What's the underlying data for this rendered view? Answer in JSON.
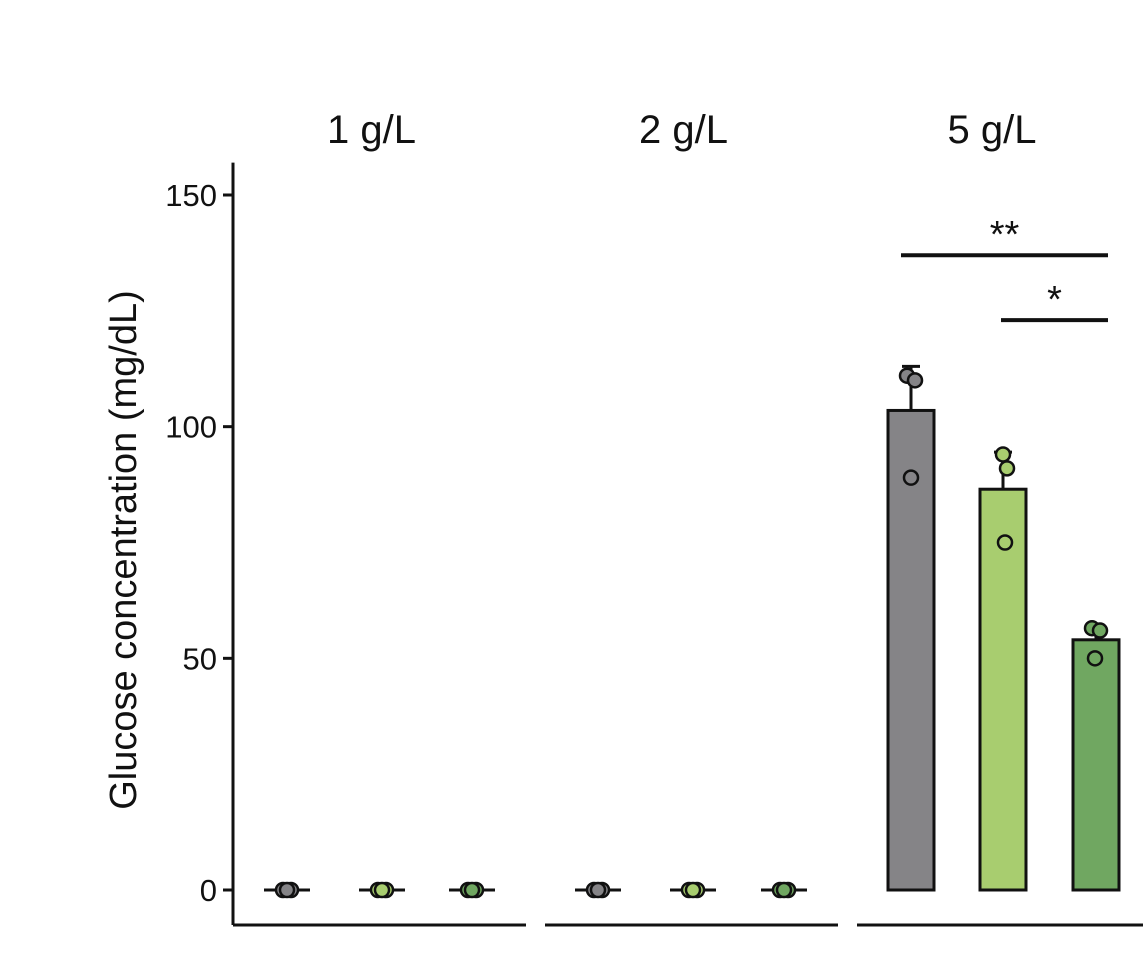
{
  "chart_data": {
    "type": "bar",
    "ylabel": "Glucose concentration (mg/dL)",
    "ylim": [
      0,
      157
    ],
    "yticks": [
      0,
      50,
      100,
      150
    ],
    "grid": false,
    "legend": "none",
    "colors": [
      "#858487",
      "#a8cd6f",
      "#70a761"
    ],
    "facets": [
      {
        "title": "1 g/L",
        "values": [
          0,
          0,
          0
        ],
        "errors": [
          0,
          0,
          0
        ],
        "points": [
          [
            0,
            0,
            0
          ],
          [
            0,
            0,
            0
          ],
          [
            0,
            0,
            0
          ]
        ],
        "significance": []
      },
      {
        "title": "2 g/L",
        "values": [
          0,
          0,
          0
        ],
        "errors": [
          0,
          0,
          0
        ],
        "points": [
          [
            0,
            0,
            0
          ],
          [
            0,
            0,
            0
          ],
          [
            0,
            0,
            0
          ]
        ],
        "significance": []
      },
      {
        "title": "5 g/L",
        "values": [
          103.5,
          86.5,
          54
        ],
        "errors": [
          9.5,
          8,
          2
        ],
        "points": [
          [
            111,
            110,
            89
          ],
          [
            94,
            91,
            75
          ],
          [
            56.5,
            56,
            50
          ]
        ],
        "significance": [
          {
            "from": 0,
            "to": 2,
            "y": 137,
            "label": "**"
          },
          {
            "from": 1,
            "to": 2,
            "y": 123,
            "label": "*"
          }
        ]
      }
    ]
  }
}
